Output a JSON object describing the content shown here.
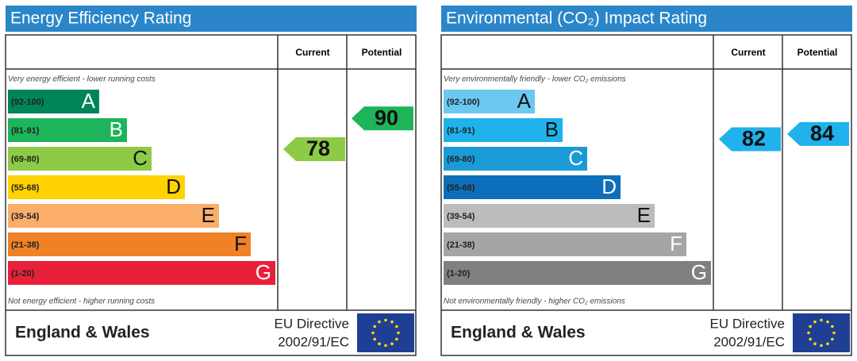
{
  "panels": [
    {
      "title": "Energy Efficiency Rating",
      "columns": [
        "Current",
        "Potential"
      ],
      "top_note": "Very energy efficient - lower running costs",
      "bottom_note": "Not energy efficient - higher running costs",
      "bands": [
        {
          "range": "(92-100)",
          "letter": "A",
          "color": "#00845a",
          "text_color": "#ffffff"
        },
        {
          "range": "(81-91)",
          "letter": "B",
          "color": "#1db45a",
          "text_color": "#ffffff"
        },
        {
          "range": "(69-80)",
          "letter": "C",
          "color": "#8dcb46",
          "text_color": "#111111"
        },
        {
          "range": "(55-68)",
          "letter": "D",
          "color": "#ffd200",
          "text_color": "#111111"
        },
        {
          "range": "(39-54)",
          "letter": "E",
          "color": "#fbad6a",
          "text_color": "#111111"
        },
        {
          "range": "(21-38)",
          "letter": "F",
          "color": "#f08127",
          "text_color": "#111111"
        },
        {
          "range": "(1-20)",
          "letter": "G",
          "color": "#e8203a",
          "text_color": "#ffffff"
        }
      ],
      "current": 78,
      "potential": 90,
      "region": "England & Wales",
      "directive": [
        "EU Directive",
        "2002/91/EC"
      ]
    },
    {
      "title": "Environmental (CO₂) Impact Rating",
      "columns": [
        "Current",
        "Potential"
      ],
      "top_note": "Very environmentally friendly - lower CO₂ emissions",
      "bottom_note": "Not environmentally friendly - higher CO₂ emissions",
      "bands": [
        {
          "range": "(92-100)",
          "letter": "A",
          "color": "#6cc8f0",
          "text_color": "#111111"
        },
        {
          "range": "(81-91)",
          "letter": "B",
          "color": "#1fb2ec",
          "text_color": "#111111"
        },
        {
          "range": "(69-80)",
          "letter": "C",
          "color": "#1a9bd8",
          "text_color": "#ffffff"
        },
        {
          "range": "(55-68)",
          "letter": "D",
          "color": "#0d6fbb",
          "text_color": "#ffffff"
        },
        {
          "range": "(39-54)",
          "letter": "E",
          "color": "#bcbcbc",
          "text_color": "#111111"
        },
        {
          "range": "(21-38)",
          "letter": "F",
          "color": "#a5a5a5",
          "text_color": "#ffffff"
        },
        {
          "range": "(1-20)",
          "letter": "G",
          "color": "#808080",
          "text_color": "#ffffff"
        }
      ],
      "current": 82,
      "potential": 84,
      "region": "England & Wales",
      "directive": [
        "EU Directive",
        "2002/91/EC"
      ]
    }
  ]
}
